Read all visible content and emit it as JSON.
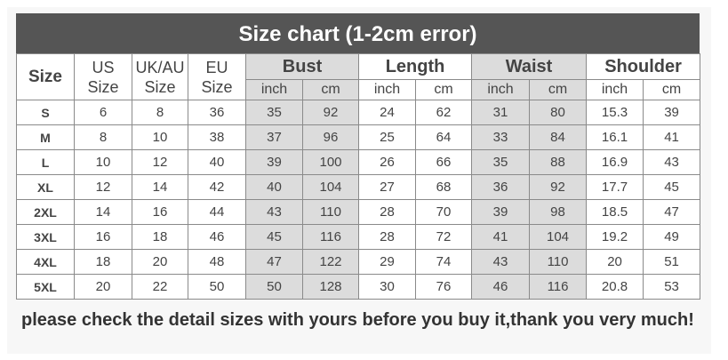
{
  "title": "Size chart (1-2cm error)",
  "headers": {
    "size": "Size",
    "us": [
      "US",
      "Size"
    ],
    "ukau": [
      "UK/AU",
      "Size"
    ],
    "eu": [
      "EU",
      "Size"
    ],
    "groups": [
      "Bust",
      "Length",
      "Waist",
      "Shoulder"
    ],
    "units": [
      "inch",
      "cm"
    ]
  },
  "rows": [
    [
      "S",
      "6",
      "8",
      "36",
      "35",
      "92",
      "24",
      "62",
      "31",
      "80",
      "15.3",
      "39"
    ],
    [
      "M",
      "8",
      "10",
      "38",
      "37",
      "96",
      "25",
      "64",
      "33",
      "84",
      "16.1",
      "41"
    ],
    [
      "L",
      "10",
      "12",
      "40",
      "39",
      "100",
      "26",
      "66",
      "35",
      "88",
      "16.9",
      "43"
    ],
    [
      "XL",
      "12",
      "14",
      "42",
      "40",
      "104",
      "27",
      "68",
      "36",
      "92",
      "17.7",
      "45"
    ],
    [
      "2XL",
      "14",
      "16",
      "44",
      "43",
      "110",
      "28",
      "70",
      "39",
      "98",
      "18.5",
      "47"
    ],
    [
      "3XL",
      "16",
      "18",
      "46",
      "45",
      "116",
      "28",
      "72",
      "41",
      "104",
      "19.2",
      "49"
    ],
    [
      "4XL",
      "18",
      "20",
      "48",
      "47",
      "122",
      "29",
      "74",
      "43",
      "110",
      "20",
      "51"
    ],
    [
      "5XL",
      "20",
      "22",
      "50",
      "50",
      "128",
      "30",
      "76",
      "46",
      "116",
      "20.8",
      "53"
    ]
  ],
  "footer": "please check the detail sizes with yours before you buy it,thank you very much!",
  "colors": {
    "title_bg": "#555555",
    "shaded": "#dcdcdc",
    "border": "#8a8a8a"
  }
}
